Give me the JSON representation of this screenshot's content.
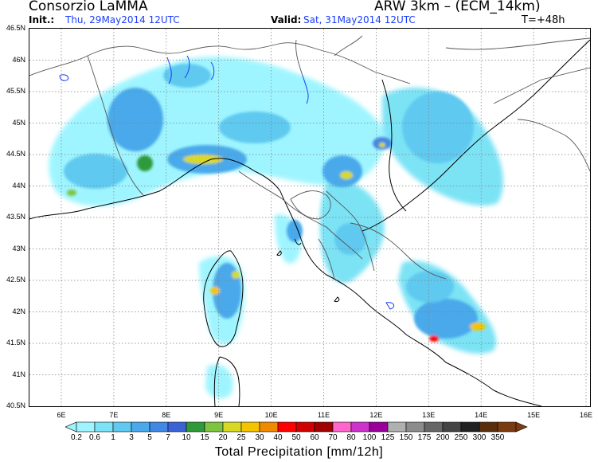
{
  "header": {
    "organization": "Consorzio LaMMA",
    "product": "ARW 3km  –  (ECM_14km)",
    "init_label": "Init.:",
    "init_value": "Thu, 29May2014 12UTC",
    "valid_label": "Valid:",
    "valid_value": "Sat, 31May2014 12UTC",
    "lead_time": "T=+48h"
  },
  "map": {
    "lat_labels": [
      "46.5N",
      "46N",
      "45.5N",
      "45N",
      "44.5N",
      "44N",
      "43.5N",
      "43N",
      "42.5N",
      "42N",
      "41.5N",
      "41N",
      "40.5N"
    ],
    "lon_labels": [
      "6E",
      "7E",
      "8E",
      "9E",
      "10E",
      "11E",
      "12E",
      "13E",
      "14E",
      "15E",
      "16E"
    ],
    "background_color": "#ffffff",
    "grid_color": "#7f7f7f",
    "border_color": "#555555"
  },
  "colorbar": {
    "title": "Total Precipitation [mm/12h]",
    "labels": [
      "0.2",
      "0.6",
      "1",
      "3",
      "5",
      "7",
      "10",
      "15",
      "20",
      "25",
      "30",
      "40",
      "50",
      "60",
      "70",
      "80",
      "100",
      "125",
      "150",
      "175",
      "200",
      "250",
      "300",
      "350"
    ],
    "colors": [
      "#9ff5ff",
      "#7be3f5",
      "#5fc9f0",
      "#4aa9ea",
      "#3f88e3",
      "#3b63d6",
      "#2e9a3a",
      "#7fc441",
      "#d8d923",
      "#f5c400",
      "#f08a00",
      "#ff0000",
      "#d00000",
      "#a00000",
      "#ff66cc",
      "#cc33cc",
      "#990099",
      "#b0b0b0",
      "#8c8c8c",
      "#666666",
      "#444444",
      "#222222",
      "#5a2d0c",
      "#7a3b10"
    ]
  }
}
